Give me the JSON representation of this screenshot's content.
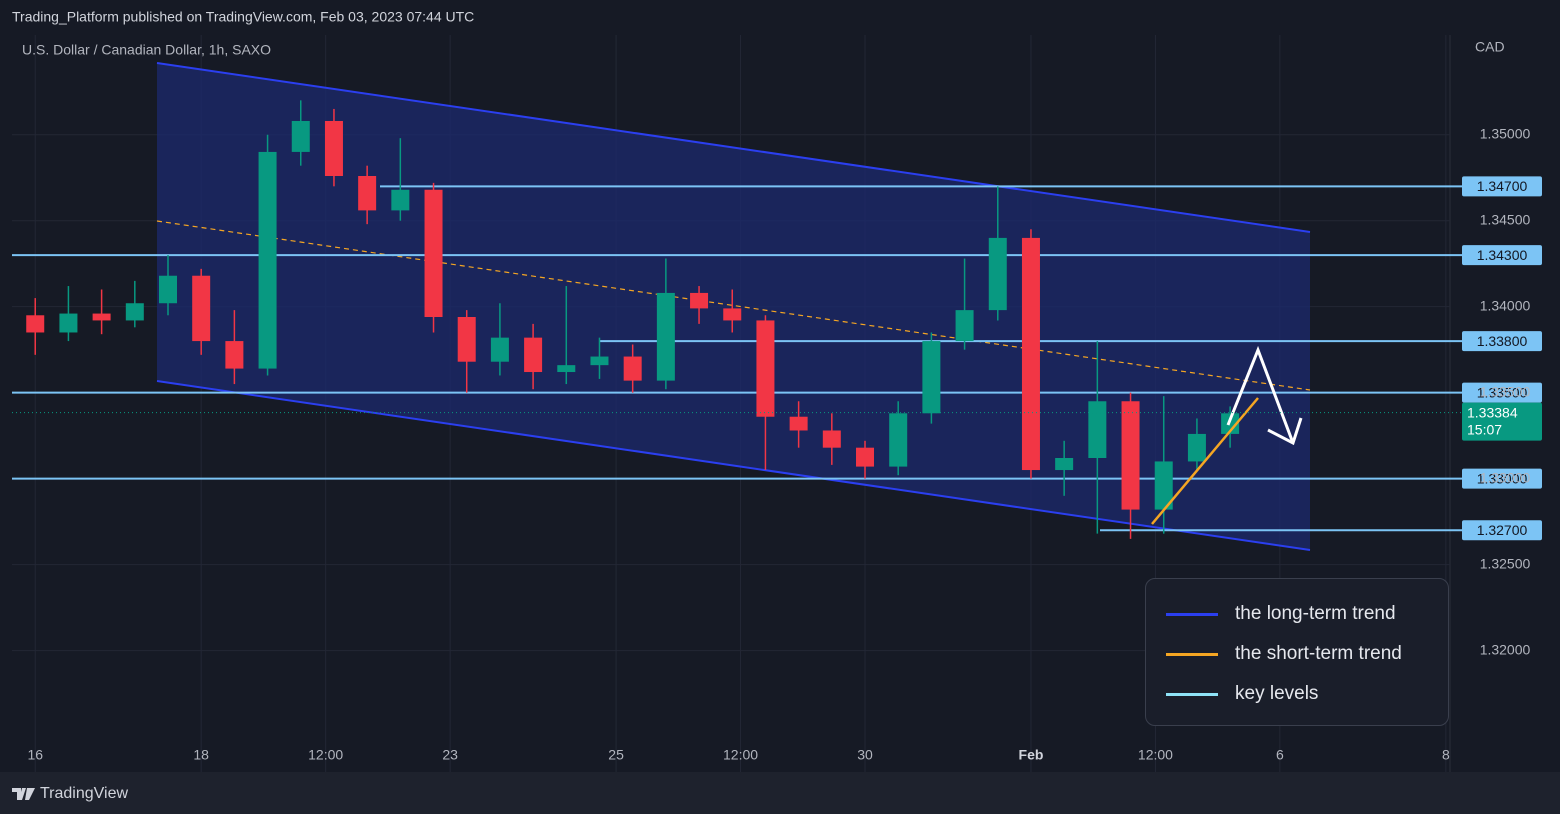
{
  "publisher": "Trading_Platform published on TradingView.com, Feb 03, 2023 07:44 UTC",
  "brand": "TradingView",
  "chart_data": {
    "type": "candlestick",
    "title": "U.S. Dollar / Canadian Dollar, 1h, SAXO",
    "y_axis_label": "CAD",
    "x": [
      0,
      0.4,
      0.8,
      1.2,
      1.6,
      2.0,
      2.4,
      2.8,
      3.2,
      3.6,
      4.0,
      4.4,
      4.8,
      5.2,
      5.6,
      6.0,
      6.4,
      6.8,
      7.2,
      7.6,
      8.0,
      8.4,
      8.8,
      9.2,
      9.6,
      10.0,
      10.4,
      10.8,
      11.2,
      11.6,
      12.0,
      12.4,
      12.8,
      13.2,
      13.6,
      14.0,
      14.4
    ],
    "open": [
      1.3395,
      1.3385,
      1.3396,
      1.3392,
      1.3402,
      1.3418,
      1.338,
      1.3364,
      1.349,
      1.3508,
      1.3476,
      1.3456,
      1.3468,
      1.3394,
      1.3368,
      1.3382,
      1.3362,
      1.3366,
      1.3371,
      1.3357,
      1.3408,
      1.3399,
      1.3392,
      1.3336,
      1.3328,
      1.3318,
      1.3307,
      1.3338,
      1.338,
      1.3398,
      1.344,
      1.3305,
      1.3312,
      1.3345,
      1.3282,
      1.331,
      1.3326
    ],
    "high": [
      1.3405,
      1.3412,
      1.341,
      1.3415,
      1.343,
      1.3422,
      1.3398,
      1.35,
      1.352,
      1.3515,
      1.3482,
      1.3498,
      1.3472,
      1.3398,
      1.3402,
      1.339,
      1.3412,
      1.3382,
      1.3378,
      1.3428,
      1.3412,
      1.341,
      1.3395,
      1.3345,
      1.3338,
      1.3322,
      1.3345,
      1.3385,
      1.3428,
      1.347,
      1.3445,
      1.3322,
      1.338,
      1.335,
      1.3348,
      1.3335,
      1.3342
    ],
    "low": [
      1.3372,
      1.338,
      1.3384,
      1.3388,
      1.3395,
      1.3372,
      1.3355,
      1.336,
      1.3482,
      1.347,
      1.3448,
      1.345,
      1.3385,
      1.335,
      1.336,
      1.3352,
      1.3355,
      1.3358,
      1.335,
      1.3352,
      1.339,
      1.3385,
      1.3305,
      1.3318,
      1.3308,
      1.33,
      1.3302,
      1.3332,
      1.3375,
      1.3392,
      1.33,
      1.329,
      1.3268,
      1.3265,
      1.3268,
      1.3305,
      1.3318
    ],
    "close": [
      1.3385,
      1.3396,
      1.3392,
      1.3402,
      1.3418,
      1.338,
      1.3364,
      1.349,
      1.3508,
      1.3476,
      1.3456,
      1.3468,
      1.3394,
      1.3368,
      1.3382,
      1.3362,
      1.3366,
      1.3371,
      1.3357,
      1.3408,
      1.3399,
      1.3392,
      1.3336,
      1.3328,
      1.3318,
      1.3307,
      1.3338,
      1.338,
      1.3398,
      1.344,
      1.3305,
      1.3312,
      1.3345,
      1.3282,
      1.331,
      1.3326,
      1.3338
    ],
    "up_color": "#089981",
    "down_color": "#f23645",
    "xlim": [
      -0.28,
      17.05
    ],
    "xticks": [
      {
        "value": 0,
        "label": "16"
      },
      {
        "value": 2,
        "label": "18"
      },
      {
        "value": 3.5,
        "label": "12:00"
      },
      {
        "value": 5,
        "label": "23"
      },
      {
        "value": 7,
        "label": "25"
      },
      {
        "value": 8.5,
        "label": "12:00"
      },
      {
        "value": 10,
        "label": "30"
      },
      {
        "value": 12,
        "label": "Feb"
      },
      {
        "value": 13.5,
        "label": "12:00"
      },
      {
        "value": 15,
        "label": "6"
      },
      {
        "value": 17,
        "label": "8"
      }
    ],
    "ylim": [
      1.3148,
      1.3558
    ],
    "yticks": [
      {
        "value": 1.35,
        "label": "1.35000"
      },
      {
        "value": 1.345,
        "label": "1.34500"
      },
      {
        "value": 1.34,
        "label": "1.34000"
      },
      {
        "value": 1.335,
        "label": "1.33500"
      },
      {
        "value": 1.33,
        "label": "1.33000"
      },
      {
        "value": 1.325,
        "label": "1.32500"
      },
      {
        "value": 1.32,
        "label": "1.32000"
      }
    ],
    "grid": true,
    "key_levels": [
      {
        "value": 1.347,
        "label": "1.34700"
      },
      {
        "value": 1.343,
        "label": "1.34300"
      },
      {
        "value": 1.338,
        "label": "1.33800"
      },
      {
        "value": 1.335,
        "label": "1.33500"
      },
      {
        "value": 1.33,
        "label": "1.33000"
      },
      {
        "value": 1.327,
        "label": "1.32700"
      }
    ],
    "key_level_color": "#7cc4f5",
    "last_price": {
      "value": 1.33384,
      "label": "1.33384"
    },
    "countdown": "15:07",
    "legend": [
      {
        "label": "the long-term trend",
        "color": "#2b3ff0"
      },
      {
        "label": "the short-term trend",
        "color": "#f5a623"
      },
      {
        "label": "key levels",
        "color": "#8fe3f7"
      }
    ]
  }
}
